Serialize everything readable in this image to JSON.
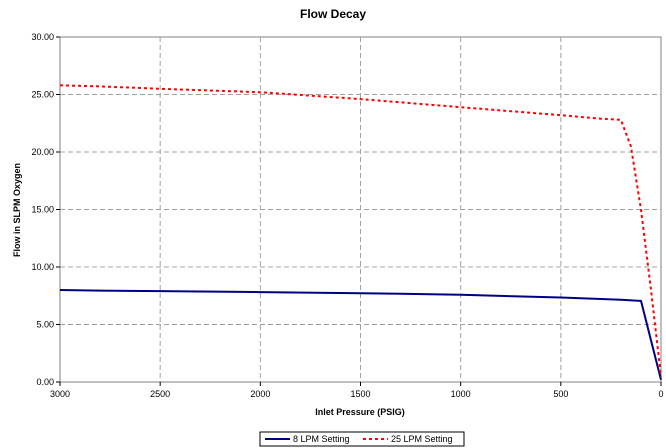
{
  "chart_data": {
    "type": "line",
    "title": "Flow Decay",
    "xlabel": "Inlet Pressure (PSIG)",
    "ylabel": "Flow in SLPM Oxygen",
    "xlim": [
      3000,
      0
    ],
    "ylim": [
      0,
      30
    ],
    "x_reversed": true,
    "x_ticks": [
      "3000",
      "2500",
      "2000",
      "1500",
      "1000",
      "500",
      "0"
    ],
    "y_ticks": [
      "0.00",
      "5.00",
      "10.00",
      "15.00",
      "20.00",
      "25.00",
      "30.00"
    ],
    "grid": true,
    "legend_position": "bottom",
    "series": [
      {
        "name": "8 LPM Setting",
        "color": "#000080",
        "style": "solid",
        "points": [
          [
            3000,
            8.0
          ],
          [
            2800,
            7.95
          ],
          [
            2500,
            7.9
          ],
          [
            2000,
            7.82
          ],
          [
            1500,
            7.72
          ],
          [
            1300,
            7.68
          ],
          [
            1000,
            7.58
          ],
          [
            500,
            7.35
          ],
          [
            200,
            7.15
          ],
          [
            100,
            7.05
          ],
          [
            0,
            0.2
          ]
        ]
      },
      {
        "name": "25 LPM Setting",
        "color": "#ff0000",
        "style": "dotted",
        "points": [
          [
            3000,
            25.8
          ],
          [
            2800,
            25.7
          ],
          [
            2500,
            25.5
          ],
          [
            2000,
            25.2
          ],
          [
            1500,
            24.6
          ],
          [
            1000,
            23.9
          ],
          [
            500,
            23.2
          ],
          [
            300,
            22.9
          ],
          [
            200,
            22.8
          ],
          [
            150,
            20.5
          ],
          [
            100,
            15.0
          ],
          [
            50,
            8.0
          ],
          [
            0,
            0.5
          ]
        ]
      }
    ]
  }
}
